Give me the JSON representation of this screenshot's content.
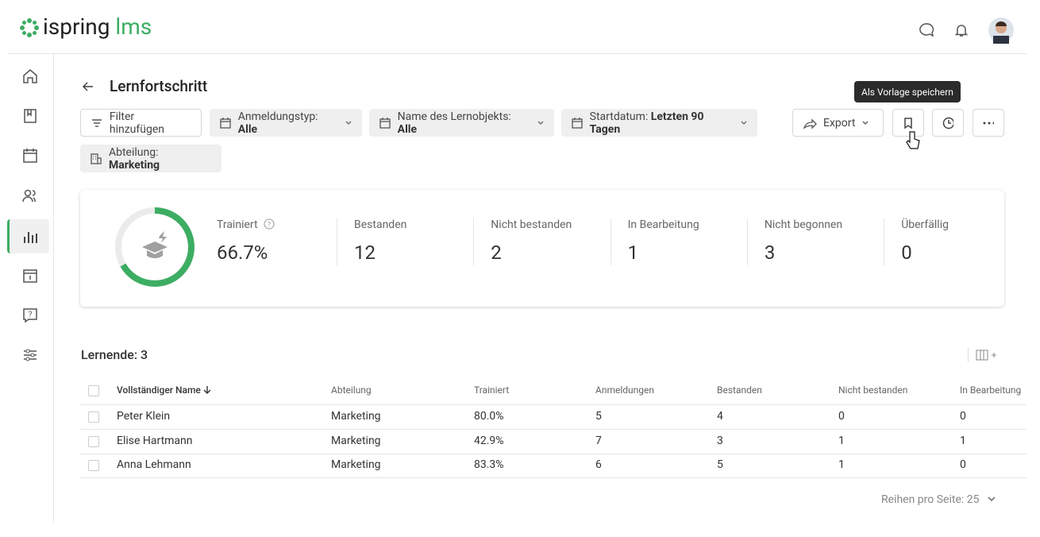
{
  "header": {
    "logo_brand": "ispring",
    "logo_product": "lms"
  },
  "page": {
    "title": "Lernfortschritt",
    "tooltip": "Als Vorlage speichern"
  },
  "filters": {
    "add": "Filter hinzufügen",
    "items": [
      {
        "label": "Anmeldungstyp:",
        "value": "Alle"
      },
      {
        "label": "Name des Lernobjekts:",
        "value": "Alle"
      },
      {
        "label": "Startdatum:",
        "value": "Letzten 90 Tagen"
      },
      {
        "label": "Abteilung:",
        "value": "Marketing"
      }
    ]
  },
  "actions": {
    "export": "Export"
  },
  "stats": {
    "progress": {
      "label": "Trainiert",
      "value": 66.7,
      "value_label": "66.7%"
    },
    "items": [
      {
        "label": "Bestanden",
        "value": "12"
      },
      {
        "label": "Nicht bestanden",
        "value": "2"
      },
      {
        "label": "In Bearbeitung",
        "value": "1"
      },
      {
        "label": "Nicht begonnen",
        "value": "3"
      },
      {
        "label": "Überfällig",
        "value": "0"
      }
    ]
  },
  "table": {
    "count": "Lernende: 3",
    "columns": [
      "Vollständiger Name",
      "Abteilung",
      "Trainiert",
      "Anmeldungen",
      "Bestanden",
      "Nicht bestanden",
      "In Bearbeitung"
    ],
    "rows": [
      [
        "Peter Klein",
        "Marketing",
        "80.0%",
        "5",
        "4",
        "0",
        "0"
      ],
      [
        "Elise Hartmann",
        "Marketing",
        "42.9%",
        "7",
        "3",
        "1",
        "1"
      ],
      [
        "Anna Lehmann",
        "Marketing",
        "83.3%",
        "6",
        "5",
        "1",
        "0"
      ]
    ]
  },
  "pagination": "Reihen pro Seite: 25"
}
